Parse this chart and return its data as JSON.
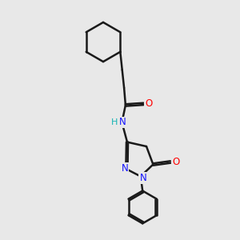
{
  "background_color": "#e8e8e8",
  "bond_color": "#1a1a1a",
  "bond_width": 1.8,
  "N_color": "#1414ff",
  "O_color": "#ff0000",
  "H_color": "#14b4b4",
  "font_size_atom": 8.5,
  "fig_width": 3.0,
  "fig_height": 3.0,
  "dpi": 100,
  "xlim": [
    0,
    10
  ],
  "ylim": [
    0,
    10
  ]
}
